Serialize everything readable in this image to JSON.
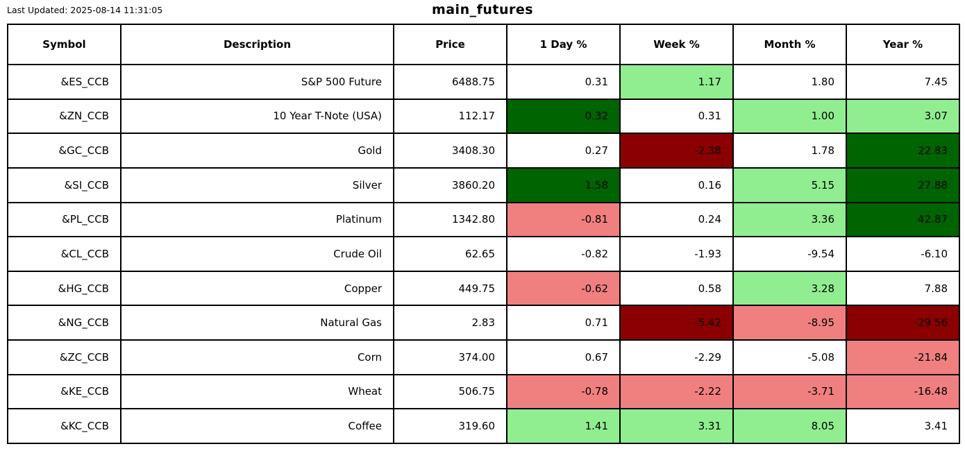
{
  "page": {
    "last_updated": "Last Updated: 2025-08-14 11:31:05",
    "title": "main_futures"
  },
  "colors": {
    "light_green": "#90EE90",
    "dark_green": "#006400",
    "light_red": "#F08080",
    "dark_red": "#8B0000",
    "border": "#000000",
    "background": "#FFFFFF",
    "text": "#000000"
  },
  "chart_data": {
    "type": "table",
    "title": "main_futures",
    "last_updated_label": "Last Updated: 2025-08-14 11:31:05",
    "columns": [
      "Symbol",
      "Description",
      "Price",
      "1 Day %",
      "Week %",
      "Month %",
      "Year %"
    ],
    "rows": [
      {
        "symbol": "&ES_CCB",
        "description": "S&P 500 Future",
        "price": "6488.75",
        "pcts": [
          "0.31",
          "1.17",
          "1.80",
          "7.45"
        ],
        "pct_colors": [
          null,
          "light_green",
          null,
          null
        ]
      },
      {
        "symbol": "&ZN_CCB",
        "description": "10 Year T-Note (USA)",
        "price": "112.17",
        "pcts": [
          "0.32",
          "0.31",
          "1.00",
          "3.07"
        ],
        "pct_colors": [
          "dark_green",
          null,
          "light_green",
          "light_green"
        ]
      },
      {
        "symbol": "&GC_CCB",
        "description": "Gold",
        "price": "3408.30",
        "pcts": [
          "0.27",
          "-2.38",
          "1.78",
          "22.83"
        ],
        "pct_colors": [
          null,
          "dark_red",
          null,
          "dark_green"
        ]
      },
      {
        "symbol": "&SI_CCB",
        "description": "Silver",
        "price": "3860.20",
        "pcts": [
          "1.58",
          "0.16",
          "5.15",
          "27.88"
        ],
        "pct_colors": [
          "dark_green",
          null,
          "light_green",
          "dark_green"
        ]
      },
      {
        "symbol": "&PL_CCB",
        "description": "Platinum",
        "price": "1342.80",
        "pcts": [
          "-0.81",
          "0.24",
          "3.36",
          "42.87"
        ],
        "pct_colors": [
          "light_red",
          null,
          "light_green",
          "dark_green"
        ]
      },
      {
        "symbol": "&CL_CCB",
        "description": "Crude Oil",
        "price": "62.65",
        "pcts": [
          "-0.82",
          "-1.93",
          "-9.54",
          "-6.10"
        ],
        "pct_colors": [
          null,
          null,
          null,
          null
        ]
      },
      {
        "symbol": "&HG_CCB",
        "description": "Copper",
        "price": "449.75",
        "pcts": [
          "-0.62",
          "0.58",
          "3.28",
          "7.88"
        ],
        "pct_colors": [
          "light_red",
          null,
          "light_green",
          null
        ]
      },
      {
        "symbol": "&NG_CCB",
        "description": "Natural Gas",
        "price": "2.83",
        "pcts": [
          "0.71",
          "-5.42",
          "-8.95",
          "-29.56"
        ],
        "pct_colors": [
          null,
          "dark_red",
          "light_red",
          "dark_red"
        ]
      },
      {
        "symbol": "&ZC_CCB",
        "description": "Corn",
        "price": "374.00",
        "pcts": [
          "0.67",
          "-2.29",
          "-5.08",
          "-21.84"
        ],
        "pct_colors": [
          null,
          null,
          null,
          "light_red"
        ]
      },
      {
        "symbol": "&KE_CCB",
        "description": "Wheat",
        "price": "506.75",
        "pcts": [
          "-0.78",
          "-2.22",
          "-3.71",
          "-16.48"
        ],
        "pct_colors": [
          "light_red",
          "light_red",
          "light_red",
          "light_red"
        ]
      },
      {
        "symbol": "&KC_CCB",
        "description": "Coffee",
        "price": "319.60",
        "pcts": [
          "1.41",
          "3.31",
          "8.05",
          "3.41"
        ],
        "pct_colors": [
          "light_green",
          "light_green",
          "light_green",
          null
        ]
      }
    ]
  }
}
